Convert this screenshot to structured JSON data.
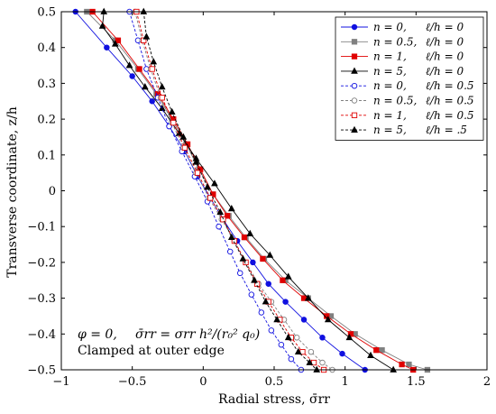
{
  "chart_data": {
    "type": "line",
    "xlabel": "Radial stress, σ̄rr",
    "ylabel": "Transverse coordinate, z/h",
    "xlim": [
      -1,
      2
    ],
    "ylim": [
      -0.5,
      0.5
    ],
    "xticks": [
      -1,
      -0.5,
      0,
      0.5,
      1,
      1.5,
      2
    ],
    "yticks": [
      -0.5,
      -0.4,
      -0.3,
      -0.2,
      -0.1,
      0,
      0.1,
      0.2,
      0.3,
      0.4,
      0.5
    ],
    "grid": false,
    "legend_position": "top-right",
    "annotation": {
      "line1_left": "φ = 0,",
      "line1_right": "σ̄rr = σrr h²/(r₀² q₀)",
      "line2": "Clamped at outer edge"
    },
    "series": [
      {
        "name": "n = 0,    ℓ/h = 0",
        "color": "#1010e0",
        "dash": "solid",
        "marker": "circle-filled",
        "x": [
          -0.9,
          -0.68,
          -0.5,
          -0.36,
          -0.24,
          -0.13,
          -0.04,
          0.05,
          0.14,
          0.24,
          0.35,
          0.46,
          0.58,
          0.71,
          0.84,
          0.98,
          1.14
        ],
        "y": [
          0.5,
          0.4,
          0.32,
          0.25,
          0.18,
          0.11,
          0.04,
          -0.02,
          -0.08,
          -0.14,
          -0.2,
          -0.26,
          -0.31,
          -0.36,
          -0.41,
          -0.455,
          -0.5
        ]
      },
      {
        "name": "n = 0.5,  ℓ/h = 0",
        "color": "#808080",
        "dash": "solid",
        "marker": "square-filled",
        "x": [
          -0.82,
          -0.62,
          -0.46,
          -0.33,
          -0.22,
          -0.12,
          -0.03,
          0.07,
          0.18,
          0.3,
          0.43,
          0.58,
          0.74,
          0.9,
          1.07,
          1.26,
          1.45,
          1.58
        ],
        "y": [
          0.5,
          0.42,
          0.34,
          0.27,
          0.2,
          0.13,
          0.06,
          -0.01,
          -0.07,
          -0.13,
          -0.19,
          -0.25,
          -0.3,
          -0.35,
          -0.4,
          -0.445,
          -0.485,
          -0.5
        ]
      },
      {
        "name": "n = 1,    ℓ/h = 0",
        "color": "#e00000",
        "dash": "solid",
        "marker": "square-filled",
        "x": [
          -0.78,
          -0.6,
          -0.45,
          -0.32,
          -0.21,
          -0.11,
          -0.02,
          0.07,
          0.17,
          0.29,
          0.42,
          0.56,
          0.71,
          0.87,
          1.04,
          1.22,
          1.4,
          1.48
        ],
        "y": [
          0.5,
          0.42,
          0.34,
          0.27,
          0.2,
          0.13,
          0.06,
          -0.01,
          -0.07,
          -0.13,
          -0.19,
          -0.25,
          -0.3,
          -0.35,
          -0.4,
          -0.445,
          -0.485,
          -0.5
        ]
      },
      {
        "name": "n = 5,    ℓ/h = 0",
        "color": "#000000",
        "dash": "solid",
        "marker": "triangle-filled",
        "x": [
          -0.7,
          -0.71,
          -0.62,
          -0.52,
          -0.41,
          -0.29,
          -0.17,
          -0.05,
          0.08,
          0.2,
          0.33,
          0.47,
          0.6,
          0.74,
          0.88,
          1.03,
          1.18,
          1.34
        ],
        "y": [
          0.5,
          0.46,
          0.41,
          0.35,
          0.29,
          0.23,
          0.16,
          0.09,
          0.02,
          -0.05,
          -0.12,
          -0.18,
          -0.24,
          -0.3,
          -0.36,
          -0.41,
          -0.46,
          -0.5
        ]
      },
      {
        "name": "n = 0,    ℓ/h = 0.5",
        "color": "#1010e0",
        "dash": "dashed",
        "marker": "circle-open",
        "x": [
          -0.52,
          -0.46,
          -0.4,
          -0.32,
          -0.24,
          -0.15,
          -0.06,
          0.03,
          0.11,
          0.19,
          0.26,
          0.34,
          0.41,
          0.48,
          0.55,
          0.62,
          0.69
        ],
        "y": [
          0.5,
          0.42,
          0.34,
          0.26,
          0.18,
          0.11,
          0.04,
          -0.03,
          -0.1,
          -0.17,
          -0.23,
          -0.29,
          -0.34,
          -0.39,
          -0.43,
          -0.47,
          -0.5
        ]
      },
      {
        "name": "n = 0.5,  ℓ/h = 0.5",
        "color": "#808080",
        "dash": "dashed",
        "marker": "circle-open",
        "x": [
          -0.48,
          -0.43,
          -0.37,
          -0.3,
          -0.22,
          -0.14,
          -0.05,
          0.04,
          0.13,
          0.22,
          0.3,
          0.39,
          0.48,
          0.57,
          0.66,
          0.76,
          0.84,
          0.91
        ],
        "y": [
          0.5,
          0.42,
          0.34,
          0.26,
          0.19,
          0.12,
          0.05,
          -0.02,
          -0.08,
          -0.14,
          -0.2,
          -0.26,
          -0.31,
          -0.36,
          -0.41,
          -0.45,
          -0.48,
          -0.5
        ]
      },
      {
        "name": "n = 1,    ℓ/h = 0.5",
        "color": "#e00000",
        "dash": "dashed",
        "marker": "square-open",
        "x": [
          -0.47,
          -0.42,
          -0.36,
          -0.29,
          -0.21,
          -0.13,
          -0.04,
          0.05,
          0.14,
          0.22,
          0.3,
          0.38,
          0.46,
          0.54,
          0.62,
          0.7,
          0.78,
          0.85
        ],
        "y": [
          0.5,
          0.42,
          0.34,
          0.26,
          0.19,
          0.12,
          0.05,
          -0.02,
          -0.08,
          -0.14,
          -0.2,
          -0.26,
          -0.31,
          -0.36,
          -0.41,
          -0.45,
          -0.48,
          -0.5
        ]
      },
      {
        "name": "n = 5,    ℓ/h = .5",
        "color": "#000000",
        "dash": "dashed",
        "marker": "triangle-filled",
        "x": [
          -0.42,
          -0.4,
          -0.35,
          -0.29,
          -0.22,
          -0.14,
          -0.05,
          0.03,
          0.12,
          0.2,
          0.28,
          0.36,
          0.44,
          0.52,
          0.6,
          0.67,
          0.75,
          0.8
        ],
        "y": [
          0.5,
          0.43,
          0.36,
          0.29,
          0.22,
          0.15,
          0.08,
          0.01,
          -0.06,
          -0.13,
          -0.19,
          -0.25,
          -0.31,
          -0.36,
          -0.41,
          -0.45,
          -0.48,
          -0.5
        ]
      }
    ],
    "legend_labels": [
      {
        "n": "n = 0,",
        "l": "ℓ/h = 0"
      },
      {
        "n": "n = 0.5,",
        "l": "ℓ/h = 0"
      },
      {
        "n": "n = 1,",
        "l": "ℓ/h = 0"
      },
      {
        "n": "n = 5,",
        "l": "ℓ/h = 0"
      },
      {
        "n": "n = 0,",
        "l": "ℓ/h = 0.5"
      },
      {
        "n": "n = 0.5,",
        "l": "ℓ/h = 0.5"
      },
      {
        "n": "n = 1,",
        "l": "ℓ/h = 0.5"
      },
      {
        "n": "n = 5,",
        "l": "ℓ/h = .5"
      }
    ]
  }
}
